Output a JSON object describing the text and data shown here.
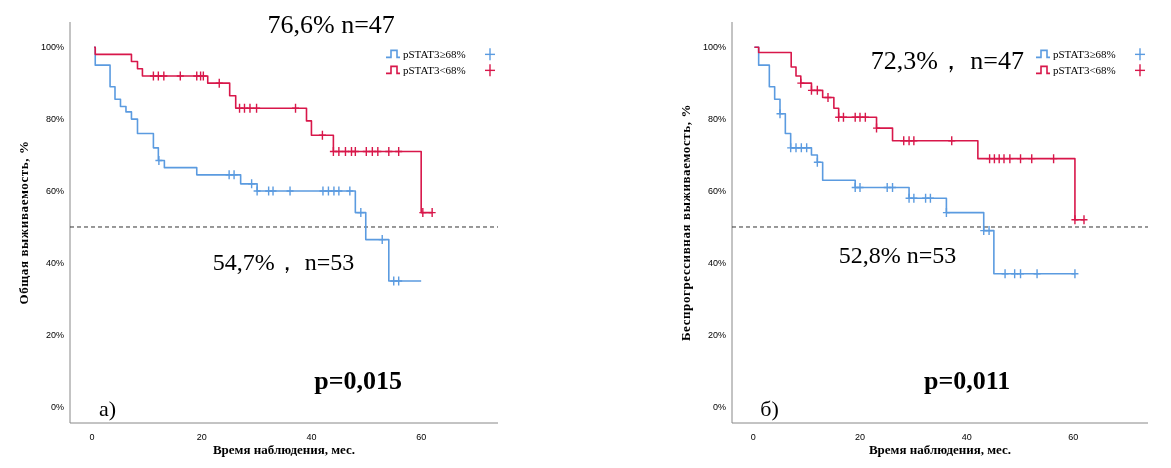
{
  "chart_data": [
    {
      "type": "step",
      "xlabel": "Время наблюдения, мес.",
      "ylabel": "Общая выживаемость, %",
      "xlim": [
        -4,
        74
      ],
      "ylim": [
        -4.5,
        107
      ],
      "xticks": [
        0,
        20,
        40,
        60
      ],
      "yticks": [
        {
          "value": 0,
          "label": "0%"
        },
        {
          "value": 20,
          "label": "20%"
        },
        {
          "value": 40,
          "label": "40%"
        },
        {
          "value": 60,
          "label": "60%"
        },
        {
          "value": 80,
          "label": "80%"
        },
        {
          "value": 100,
          "label": "100%"
        }
      ],
      "legend": "top right",
      "ref_lines": [
        {
          "axis": "y",
          "value": 50,
          "line_style": "dashed",
          "color": "#333333"
        }
      ],
      "annotations": [
        "76,6% n=47",
        "54,7%， n=53",
        "p=0,015",
        "а)"
      ],
      "series": [
        {
          "name": "pSTAT3≥68%",
          "color": "#5b9be0",
          "x": [
            0.4,
            0.6,
            3.3,
            4.2,
            5.2,
            6.2,
            7.2,
            8.3,
            11.2,
            12.1,
            13.2,
            19.1,
            27.1,
            30.1,
            48.0,
            49.9,
            54.1,
            60.0
          ],
          "values": [
            100,
            95,
            89,
            85.5,
            83.5,
            82,
            80,
            76,
            72,
            68.5,
            66.5,
            64.5,
            62,
            60,
            54,
            46.5,
            35,
            35
          ]
        },
        {
          "name": "pSTAT3<68%",
          "color": "#d8174a",
          "x": [
            0.4,
            0.6,
            7.2,
            8.3,
            9.2,
            21.1,
            25.1,
            26.2,
            39.1,
            40.0,
            44.0,
            60.0,
            62.0
          ],
          "values": [
            100,
            98,
            96,
            94,
            92,
            90,
            86.5,
            83,
            79.5,
            75.5,
            71,
            54,
            54
          ]
        },
        {
          "type": "scatter",
          "marker": "cross",
          "color": "#5b9be0",
          "x": [
            12.2,
            25.0,
            25.9,
            29.1,
            30.1,
            32.2,
            33.0,
            36.1,
            42.1,
            43.1,
            44.1,
            45.0,
            47.0,
            49.0,
            52.9,
            55.0,
            55.9
          ],
          "values": [
            68.5,
            64.5,
            64.5,
            62,
            60,
            60,
            60,
            60,
            60,
            60,
            60,
            60,
            60,
            54,
            46.5,
            35,
            35
          ]
        },
        {
          "type": "scatter",
          "marker": "cross",
          "color": "#d8174a",
          "x": [
            11.2,
            12.1,
            13.1,
            16.1,
            19.1,
            19.8,
            20.3,
            23.2,
            26.9,
            27.8,
            28.8,
            30.0,
            37.1,
            42.0,
            44.0,
            45.0,
            46.2,
            47.3,
            48.0,
            50.0,
            51.1,
            52.1,
            54.1,
            55.9,
            60.3,
            62.0
          ],
          "values": [
            92,
            92,
            92,
            92,
            92,
            92,
            92,
            90,
            83,
            83,
            83,
            83,
            83,
            75.5,
            71,
            71,
            71,
            71,
            71,
            71,
            71,
            71,
            71,
            71,
            54,
            54
          ]
        }
      ]
    },
    {
      "type": "step",
      "xlabel": "Время наблюдения, мес.",
      "ylabel": "Беспрогрессивная выживаемость, %",
      "xlim": [
        -4,
        74
      ],
      "ylim": [
        -4.5,
        107
      ],
      "xticks": [
        0,
        20,
        40,
        60
      ],
      "yticks": [
        {
          "value": 0,
          "label": "0%"
        },
        {
          "value": 20,
          "label": "20%"
        },
        {
          "value": 40,
          "label": "40%"
        },
        {
          "value": 60,
          "label": "60%"
        },
        {
          "value": 80,
          "label": "80%"
        },
        {
          "value": 100,
          "label": "100%"
        }
      ],
      "legend": "top right",
      "ref_lines": [
        {
          "axis": "y",
          "value": 50,
          "line_style": "dashed",
          "color": "#333333"
        }
      ],
      "annotations": [
        "72,3%， n=47",
        "52,8% n=53",
        "p=0,011",
        "б)"
      ],
      "series": [
        {
          "name": "pSTAT3≥68%",
          "color": "#5b9be0",
          "x": [
            0.2,
            1.0,
            3.0,
            4.0,
            5.0,
            6.0,
            7.0,
            10.9,
            12.0,
            13.0,
            19.1,
            29.2,
            36.2,
            43.2,
            45.1,
            60.3
          ],
          "values": [
            100,
            95,
            89,
            85.5,
            81.5,
            76,
            72,
            70,
            68,
            63,
            61,
            58,
            54,
            49,
            37,
            37
          ]
        },
        {
          "name": "pSTAT3<68%",
          "color": "#d8174a",
          "x": [
            0.2,
            1.0,
            7.1,
            8.0,
            8.9,
            10.9,
            13.0,
            15.1,
            16.0,
            23.1,
            26.1,
            42.1,
            60.3,
            62.0
          ],
          "values": [
            100,
            98.5,
            94.5,
            92,
            90,
            88,
            86,
            83,
            80.5,
            77.5,
            74,
            69,
            52,
            52
          ]
        },
        {
          "type": "scatter",
          "marker": "cross",
          "color": "#5b9be0",
          "x": [
            5.0,
            7.0,
            8.0,
            9.0,
            10.0,
            12.0,
            19.1,
            20.0,
            25.1,
            26.1,
            29.2,
            30.1,
            32.3,
            33.2,
            36.2,
            43.2,
            44.2,
            47.2,
            49.0,
            50.1,
            53.2,
            60.3
          ],
          "values": [
            81.5,
            72,
            72,
            72,
            72,
            68,
            61,
            61,
            61,
            61,
            58,
            58,
            58,
            58,
            54,
            49,
            49,
            37,
            37,
            37,
            37,
            37
          ]
        },
        {
          "type": "scatter",
          "marker": "cross",
          "color": "#d8174a",
          "x": [
            8.9,
            10.9,
            12.0,
            14.0,
            16.0,
            16.9,
            19.1,
            20.0,
            21.0,
            23.1,
            28.2,
            29.2,
            30.1,
            37.2,
            44.3,
            45.2,
            46.1,
            47.0,
            48.1,
            50.1,
            52.2,
            56.3,
            60.3,
            62.0
          ],
          "values": [
            90,
            88,
            88,
            86,
            80.5,
            80.5,
            80.5,
            80.5,
            80.5,
            77.5,
            74,
            74,
            74,
            74,
            69,
            69,
            69,
            69,
            69,
            69,
            69,
            69,
            52,
            52
          ]
        }
      ]
    }
  ]
}
